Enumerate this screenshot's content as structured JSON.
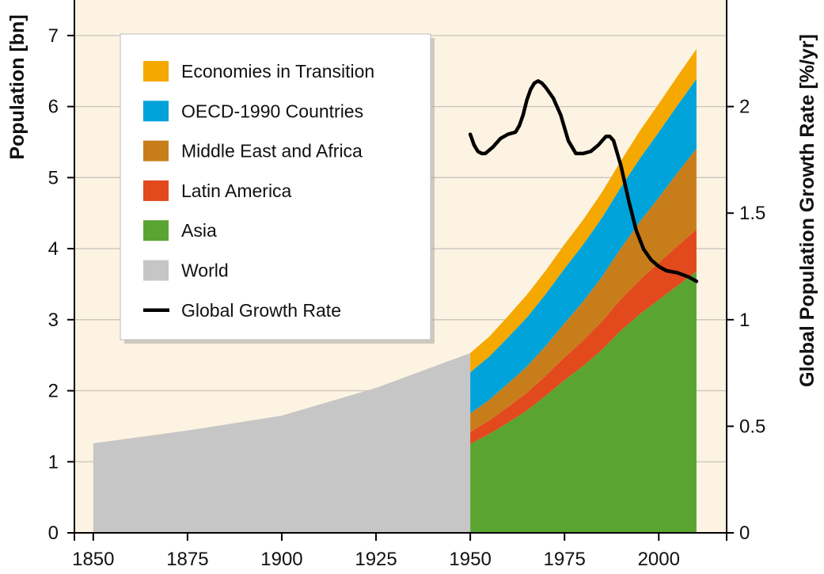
{
  "chart_data": {
    "type": "area",
    "title": "",
    "ylabel": "Population [bn]",
    "y2label": "Global Population Growth Rate [%/yr]",
    "xlim": [
      1845,
      2018
    ],
    "ylim": [
      0,
      7.5
    ],
    "y2lim": [
      0,
      2.5
    ],
    "x_ticks": [
      "1850",
      "1875",
      "1900",
      "1925",
      "1950",
      "1975",
      "2000"
    ],
    "y_ticks": [
      "0",
      "1",
      "2",
      "3",
      "4",
      "5",
      "6",
      "7"
    ],
    "y2_ticks": [
      "0",
      "0.5",
      "1",
      "1.5",
      "2"
    ],
    "grid": "horizontal",
    "legend_position": "top-left",
    "colors": {
      "background": "#fcf3e2",
      "economies_in_transition": "#f5a800",
      "oecd": "#00a3d9",
      "mea": "#c87d1b",
      "latin_america": "#e2491c",
      "asia": "#5aa432",
      "world": "#c6c6c6",
      "growth_rate": "#000000"
    },
    "legend": [
      {
        "label": "Economies in Transition",
        "color": "#f5a800",
        "kind": "box"
      },
      {
        "label": "OECD-1990 Countries",
        "color": "#00a3d9",
        "kind": "box"
      },
      {
        "label": "Middle East and Africa",
        "color": "#c87d1b",
        "kind": "box"
      },
      {
        "label": "Latin America",
        "color": "#e2491c",
        "kind": "box"
      },
      {
        "label": "Asia",
        "color": "#5aa432",
        "kind": "box"
      },
      {
        "label": "World",
        "color": "#c6c6c6",
        "kind": "box"
      },
      {
        "label": "Global Growth Rate",
        "color": "#000000",
        "kind": "line"
      }
    ],
    "world_series": {
      "name": "World",
      "x": [
        1850,
        1875,
        1900,
        1925,
        1950
      ],
      "values": [
        1.26,
        1.44,
        1.65,
        2.04,
        2.53
      ]
    },
    "regional_x": [
      1950,
      1955,
      1960,
      1965,
      1970,
      1975,
      1980,
      1985,
      1990,
      1995,
      2000,
      2005,
      2010
    ],
    "regional_series": [
      {
        "name": "Asia",
        "values": [
          1.25,
          1.39,
          1.55,
          1.72,
          1.93,
          2.15,
          2.35,
          2.58,
          2.85,
          3.08,
          3.28,
          3.48,
          3.68
        ]
      },
      {
        "name": "Latin America",
        "values": [
          0.17,
          0.19,
          0.22,
          0.25,
          0.28,
          0.32,
          0.36,
          0.4,
          0.44,
          0.48,
          0.52,
          0.56,
          0.59
        ]
      },
      {
        "name": "Middle East and Africa",
        "values": [
          0.26,
          0.29,
          0.33,
          0.37,
          0.42,
          0.48,
          0.55,
          0.63,
          0.72,
          0.82,
          0.92,
          1.03,
          1.14
        ]
      },
      {
        "name": "OECD-1990 Countries",
        "values": [
          0.58,
          0.61,
          0.65,
          0.69,
          0.73,
          0.77,
          0.8,
          0.83,
          0.86,
          0.89,
          0.92,
          0.95,
          0.98
        ]
      },
      {
        "name": "Economies in Transition",
        "values": [
          0.27,
          0.28,
          0.3,
          0.32,
          0.33,
          0.34,
          0.35,
          0.36,
          0.37,
          0.39,
          0.4,
          0.41,
          0.42
        ]
      }
    ],
    "growth_rate": {
      "name": "Global Growth Rate",
      "x": [
        1950,
        1951,
        1952,
        1953,
        1954,
        1956,
        1958,
        1960,
        1962,
        1963,
        1964,
        1965,
        1966,
        1967,
        1968,
        1969,
        1970,
        1972,
        1974,
        1975,
        1976,
        1978,
        1980,
        1982,
        1984,
        1985,
        1986,
        1987,
        1988,
        1990,
        1992,
        1994,
        1996,
        1998,
        2000,
        2002,
        2005,
        2008,
        2010
      ],
      "values": [
        1.87,
        1.82,
        1.79,
        1.78,
        1.78,
        1.81,
        1.85,
        1.87,
        1.88,
        1.91,
        1.96,
        2.03,
        2.08,
        2.11,
        2.12,
        2.11,
        2.09,
        2.04,
        1.96,
        1.9,
        1.84,
        1.78,
        1.78,
        1.79,
        1.82,
        1.84,
        1.86,
        1.86,
        1.84,
        1.72,
        1.56,
        1.42,
        1.33,
        1.28,
        1.25,
        1.23,
        1.22,
        1.2,
        1.18
      ]
    }
  }
}
